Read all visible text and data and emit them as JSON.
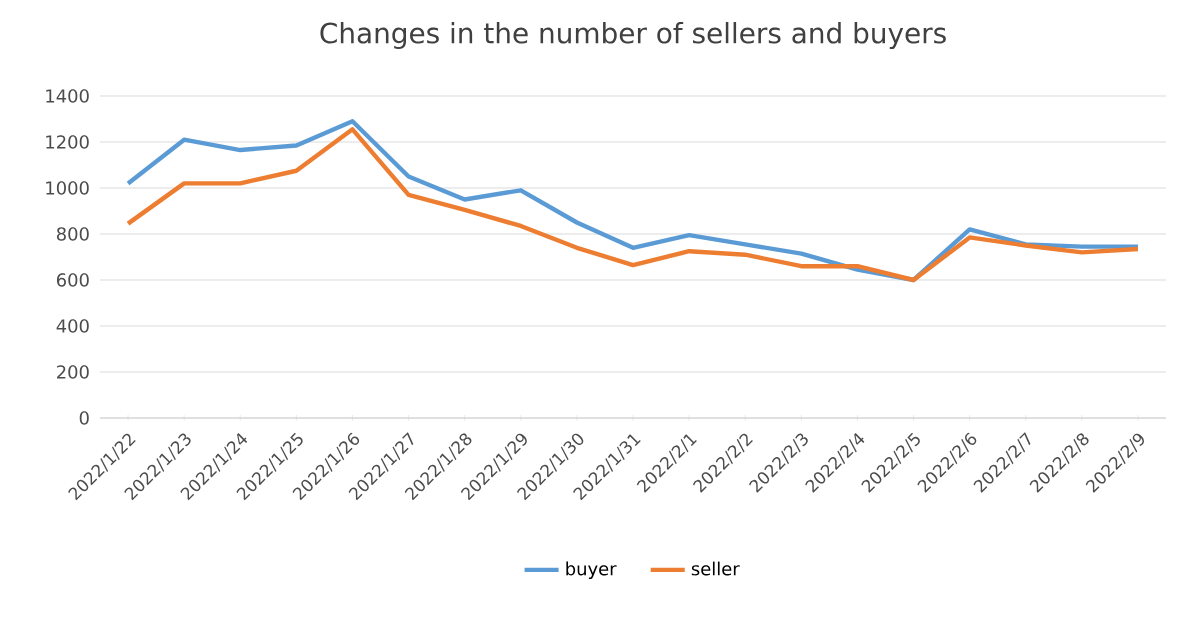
{
  "chart_data": {
    "type": "line",
    "title": "Changes in the number of sellers and buyers",
    "categories": [
      "2022/1/22",
      "2022/1/23",
      "2022/1/24",
      "2022/1/25",
      "2022/1/26",
      "2022/1/27",
      "2022/1/28",
      "2022/1/29",
      "2022/1/30",
      "2022/1/31",
      "2022/2/1",
      "2022/2/2",
      "2022/2/3",
      "2022/2/4",
      "2022/2/5",
      "2022/2/6",
      "2022/2/7",
      "2022/2/8",
      "2022/2/9"
    ],
    "series": [
      {
        "name": "buyer",
        "color": "#5b9bd5",
        "values": [
          1020,
          1210,
          1165,
          1185,
          1290,
          1050,
          950,
          990,
          850,
          740,
          795,
          755,
          715,
          645,
          600,
          820,
          755,
          745,
          745
        ]
      },
      {
        "name": "seller",
        "color": "#ed7d31",
        "values": [
          845,
          1020,
          1020,
          1075,
          1255,
          970,
          905,
          835,
          740,
          665,
          725,
          710,
          660,
          660,
          600,
          785,
          750,
          720,
          735
        ]
      }
    ],
    "ylim": [
      0,
      1400
    ],
    "yticks": [
      0,
      200,
      400,
      600,
      800,
      1000,
      1200,
      1400
    ],
    "grid": "y",
    "legend": "bottom",
    "marker": "none",
    "line_style": "solid"
  }
}
